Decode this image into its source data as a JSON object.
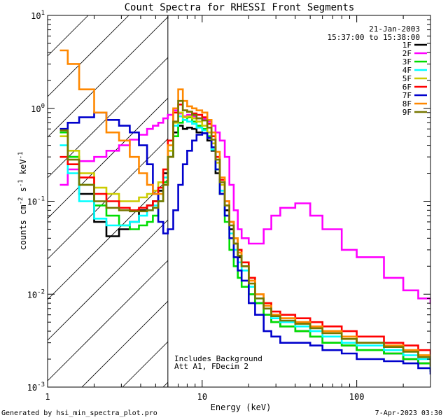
{
  "footer": {
    "generated_by": "Generated by hsi_min_spectra_plot.pro",
    "timestamp": "7-Apr-2023 03:30"
  },
  "chart_data": {
    "type": "line",
    "title": "Count Spectra for RHESSI Front Segments",
    "xlabel": "Energy (keV)",
    "ylabel": "counts cm^-2 s^-1 keV^-1",
    "xscale": "log",
    "yscale": "log",
    "xlim": [
      1,
      300
    ],
    "ylim": [
      0.001,
      10
    ],
    "x_tick_labels": [
      {
        "value": 1,
        "label": "1"
      },
      {
        "value": 10,
        "label": "10"
      },
      {
        "value": 100,
        "label": "100"
      }
    ],
    "y_tick_labels": [
      {
        "value": 10,
        "base": "10",
        "exp": "1"
      },
      {
        "value": 1,
        "base": "10",
        "exp": "0"
      },
      {
        "value": 0.1,
        "base": "10",
        "exp": "-1"
      },
      {
        "value": 0.01,
        "base": "10",
        "exp": "-2"
      },
      {
        "value": 0.001,
        "base": "10",
        "exp": "-3"
      }
    ],
    "date": "21-Jan-2003",
    "time_range": "15:37:00 to 15:38:00",
    "annotations": [
      "Includes Background",
      "Att A1, FDecim 2"
    ],
    "shaded_region": {
      "from": 1,
      "to": 6,
      "pattern": "diagonal hatch"
    },
    "vertical_line_at": 6,
    "series": [
      {
        "name": "1F",
        "color": "#000000",
        "x": [
          1.2,
          1.35,
          1.6,
          2.0,
          2.4,
          2.9,
          3.4,
          3.9,
          4.4,
          4.8,
          5.2,
          5.6,
          6.0,
          6.5,
          7.0,
          7.5,
          8.0,
          8.6,
          9.2,
          10.0,
          10.8,
          11.5,
          12.2,
          13.0,
          14.0,
          15.0,
          16.0,
          17.0,
          18.0,
          20.0,
          22.0,
          25.0,
          28.0,
          32.0,
          40.0,
          50.0,
          60.0,
          80.0,
          100.0,
          150.0,
          200.0,
          250.0,
          300.0
        ],
        "y": [
          0.55,
          0.3,
          0.12,
          0.06,
          0.042,
          0.05,
          0.06,
          0.08,
          0.09,
          0.1,
          0.13,
          0.2,
          0.3,
          0.55,
          0.65,
          0.6,
          0.62,
          0.6,
          0.55,
          0.54,
          0.45,
          0.35,
          0.2,
          0.12,
          0.08,
          0.05,
          0.035,
          0.025,
          0.02,
          0.01,
          0.008,
          0.006,
          0.005,
          0.0045,
          0.004,
          0.0035,
          0.003,
          0.0028,
          0.0025,
          0.0023,
          0.002,
          0.0018,
          0.0015
        ]
      },
      {
        "name": "2F",
        "color": "#ff00ff",
        "x": [
          1.2,
          1.35,
          1.6,
          2.0,
          2.4,
          2.9,
          3.4,
          3.9,
          4.4,
          4.8,
          5.2,
          5.6,
          6.0,
          6.5,
          7.0,
          7.5,
          8.0,
          8.6,
          9.2,
          10.0,
          10.8,
          11.5,
          12.2,
          13.0,
          14.0,
          15.0,
          16.0,
          17.0,
          18.0,
          20.0,
          22.0,
          25.0,
          28.0,
          32.0,
          40.0,
          50.0,
          60.0,
          80.0,
          100.0,
          150.0,
          200.0,
          250.0,
          300.0
        ],
        "y": [
          0.15,
          0.22,
          0.27,
          0.3,
          0.35,
          0.4,
          0.46,
          0.52,
          0.6,
          0.65,
          0.7,
          0.78,
          0.85,
          0.95,
          0.88,
          0.82,
          0.85,
          0.82,
          0.78,
          0.77,
          0.72,
          0.65,
          0.55,
          0.45,
          0.3,
          0.15,
          0.08,
          0.05,
          0.04,
          0.035,
          0.035,
          0.05,
          0.07,
          0.085,
          0.095,
          0.07,
          0.05,
          0.03,
          0.025,
          0.015,
          0.011,
          0.009,
          0.008
        ]
      },
      {
        "name": "3F",
        "color": "#00dd00",
        "x": [
          1.2,
          1.35,
          1.6,
          2.0,
          2.4,
          2.9,
          3.4,
          3.9,
          4.4,
          4.8,
          5.2,
          5.6,
          6.0,
          6.5,
          7.0,
          7.5,
          8.0,
          8.6,
          9.2,
          10.0,
          10.8,
          11.5,
          12.2,
          13.0,
          14.0,
          15.0,
          16.0,
          17.0,
          18.0,
          20.0,
          22.0,
          25.0,
          28.0,
          32.0,
          40.0,
          50.0,
          60.0,
          80.0,
          100.0,
          150.0,
          200.0,
          250.0,
          300.0
        ],
        "y": [
          0.55,
          0.3,
          0.15,
          0.09,
          0.07,
          0.055,
          0.05,
          0.055,
          0.06,
          0.07,
          0.1,
          0.16,
          0.3,
          0.5,
          0.7,
          0.75,
          0.8,
          0.72,
          0.65,
          0.6,
          0.5,
          0.38,
          0.22,
          0.12,
          0.06,
          0.03,
          0.02,
          0.015,
          0.012,
          0.01,
          0.008,
          0.006,
          0.005,
          0.0045,
          0.004,
          0.0035,
          0.003,
          0.0028,
          0.0025,
          0.0023,
          0.002,
          0.0018,
          0.0015
        ]
      },
      {
        "name": "4F",
        "color": "#00ffff",
        "x": [
          1.2,
          1.35,
          1.6,
          2.0,
          2.4,
          2.9,
          3.4,
          3.9,
          4.4,
          4.8,
          5.2,
          5.6,
          6.0,
          6.5,
          7.0,
          7.5,
          8.0,
          8.6,
          9.2,
          10.0,
          10.8,
          11.5,
          12.2,
          13.0,
          14.0,
          15.0,
          16.0,
          17.0,
          18.0,
          20.0,
          22.0,
          25.0,
          28.0,
          32.0,
          40.0,
          50.0,
          60.0,
          80.0,
          100.0,
          150.0,
          200.0,
          250.0,
          300.0
        ],
        "y": [
          0.4,
          0.2,
          0.1,
          0.065,
          0.055,
          0.055,
          0.06,
          0.07,
          0.08,
          0.09,
          0.12,
          0.18,
          0.35,
          0.65,
          0.82,
          0.75,
          0.72,
          0.68,
          0.62,
          0.58,
          0.48,
          0.36,
          0.22,
          0.13,
          0.07,
          0.045,
          0.03,
          0.022,
          0.018,
          0.012,
          0.009,
          0.007,
          0.0055,
          0.005,
          0.0045,
          0.004,
          0.0035,
          0.003,
          0.0028,
          0.0025,
          0.0022,
          0.002,
          0.0016
        ]
      },
      {
        "name": "5F",
        "color": "#cccc00",
        "x": [
          1.2,
          1.35,
          1.6,
          2.0,
          2.4,
          2.9,
          3.4,
          3.9,
          4.4,
          4.8,
          5.2,
          5.6,
          6.0,
          6.5,
          7.0,
          7.5,
          8.0,
          8.6,
          9.2,
          10.0,
          10.8,
          11.5,
          12.2,
          13.0,
          14.0,
          15.0,
          16.0,
          17.0,
          18.0,
          20.0,
          22.0,
          25.0,
          28.0,
          32.0,
          40.0,
          50.0,
          60.0,
          80.0,
          100.0,
          150.0,
          200.0,
          250.0,
          300.0
        ],
        "y": [
          0.5,
          0.35,
          0.2,
          0.14,
          0.12,
          0.1,
          0.1,
          0.11,
          0.12,
          0.13,
          0.16,
          0.22,
          0.35,
          0.7,
          0.9,
          0.8,
          0.82,
          0.78,
          0.72,
          0.65,
          0.55,
          0.42,
          0.26,
          0.15,
          0.09,
          0.06,
          0.04,
          0.03,
          0.022,
          0.015,
          0.01,
          0.008,
          0.006,
          0.0055,
          0.005,
          0.0045,
          0.004,
          0.0035,
          0.003,
          0.0028,
          0.0025,
          0.0022,
          0.002
        ]
      },
      {
        "name": "6F",
        "color": "#ff0000",
        "x": [
          1.2,
          1.35,
          1.6,
          2.0,
          2.4,
          2.9,
          3.4,
          3.9,
          4.4,
          4.8,
          5.2,
          5.6,
          6.0,
          6.5,
          7.0,
          7.5,
          8.0,
          8.6,
          9.2,
          10.0,
          10.8,
          11.5,
          12.2,
          13.0,
          14.0,
          15.0,
          16.0,
          17.0,
          18.0,
          20.0,
          22.0,
          25.0,
          28.0,
          32.0,
          40.0,
          50.0,
          60.0,
          80.0,
          100.0,
          150.0,
          200.0,
          250.0,
          300.0
        ],
        "y": [
          0.3,
          0.25,
          0.18,
          0.12,
          0.1,
          0.085,
          0.08,
          0.085,
          0.09,
          0.1,
          0.14,
          0.22,
          0.45,
          0.9,
          1.1,
          0.95,
          0.92,
          0.88,
          0.85,
          0.8,
          0.68,
          0.5,
          0.3,
          0.17,
          0.1,
          0.06,
          0.04,
          0.03,
          0.022,
          0.015,
          0.01,
          0.008,
          0.0065,
          0.006,
          0.0055,
          0.005,
          0.0045,
          0.004,
          0.0035,
          0.003,
          0.0028,
          0.0025,
          0.002
        ]
      },
      {
        "name": "7F",
        "color": "#0000cc",
        "x": [
          1.2,
          1.35,
          1.6,
          2.0,
          2.4,
          2.9,
          3.4,
          3.9,
          4.4,
          4.8,
          5.2,
          5.6,
          6.0,
          6.5,
          7.0,
          7.5,
          8.0,
          8.6,
          9.2,
          10.0,
          10.8,
          11.5,
          12.2,
          13.0,
          14.0,
          15.0,
          16.0,
          17.0,
          18.0,
          20.0,
          22.0,
          25.0,
          28.0,
          32.0,
          40.0,
          50.0,
          60.0,
          80.0,
          100.0,
          150.0,
          200.0,
          250.0,
          300.0
        ],
        "y": [
          0.6,
          0.7,
          0.8,
          0.9,
          0.75,
          0.65,
          0.55,
          0.4,
          0.25,
          0.12,
          0.06,
          0.045,
          0.05,
          0.08,
          0.15,
          0.25,
          0.35,
          0.45,
          0.52,
          0.54,
          0.48,
          0.38,
          0.22,
          0.12,
          0.07,
          0.04,
          0.025,
          0.018,
          0.014,
          0.008,
          0.006,
          0.004,
          0.0035,
          0.003,
          0.003,
          0.0028,
          0.0025,
          0.0023,
          0.002,
          0.0019,
          0.0018,
          0.0016,
          0.0014
        ]
      },
      {
        "name": "8F",
        "color": "#ff8800",
        "x": [
          1.2,
          1.35,
          1.6,
          2.0,
          2.4,
          2.9,
          3.4,
          3.9,
          4.4,
          4.8,
          5.2,
          5.6,
          6.0,
          6.5,
          7.0,
          7.5,
          8.0,
          8.6,
          9.2,
          10.0,
          10.8,
          11.5,
          12.2,
          13.0,
          14.0,
          15.0,
          16.0,
          17.0,
          18.0,
          20.0,
          22.0,
          25.0,
          28.0,
          32.0,
          40.0,
          50.0,
          60.0,
          80.0,
          100.0,
          150.0,
          200.0,
          250.0,
          300.0
        ],
        "y": [
          4.2,
          3.0,
          1.6,
          0.9,
          0.55,
          0.45,
          0.3,
          0.2,
          0.15,
          0.12,
          0.12,
          0.15,
          0.4,
          1.0,
          1.6,
          1.2,
          1.05,
          1.0,
          0.95,
          0.9,
          0.75,
          0.55,
          0.34,
          0.18,
          0.1,
          0.06,
          0.04,
          0.028,
          0.02,
          0.014,
          0.01,
          0.0075,
          0.006,
          0.0055,
          0.005,
          0.0045,
          0.004,
          0.0035,
          0.003,
          0.0028,
          0.0025,
          0.0022,
          0.0018
        ]
      },
      {
        "name": "9F",
        "color": "#777700",
        "x": [
          1.2,
          1.35,
          1.6,
          2.0,
          2.4,
          2.9,
          3.4,
          3.9,
          4.4,
          4.8,
          5.2,
          5.6,
          6.0,
          6.5,
          7.0,
          7.5,
          8.0,
          8.6,
          9.2,
          10.0,
          10.8,
          11.5,
          12.2,
          13.0,
          14.0,
          15.0,
          16.0,
          17.0,
          18.0,
          20.0,
          22.0,
          25.0,
          28.0,
          32.0,
          40.0,
          50.0,
          60.0,
          80.0,
          100.0,
          150.0,
          200.0,
          250.0,
          300.0
        ],
        "y": [
          0.58,
          0.28,
          0.15,
          0.1,
          0.085,
          0.08,
          0.078,
          0.078,
          0.08,
          0.085,
          0.1,
          0.15,
          0.3,
          0.72,
          1.2,
          0.95,
          0.92,
          0.85,
          0.78,
          0.74,
          0.62,
          0.46,
          0.28,
          0.16,
          0.09,
          0.055,
          0.035,
          0.026,
          0.02,
          0.013,
          0.009,
          0.007,
          0.0058,
          0.0052,
          0.0048,
          0.0043,
          0.0038,
          0.0033,
          0.003,
          0.0027,
          0.0024,
          0.0021,
          0.0017
        ]
      }
    ]
  }
}
